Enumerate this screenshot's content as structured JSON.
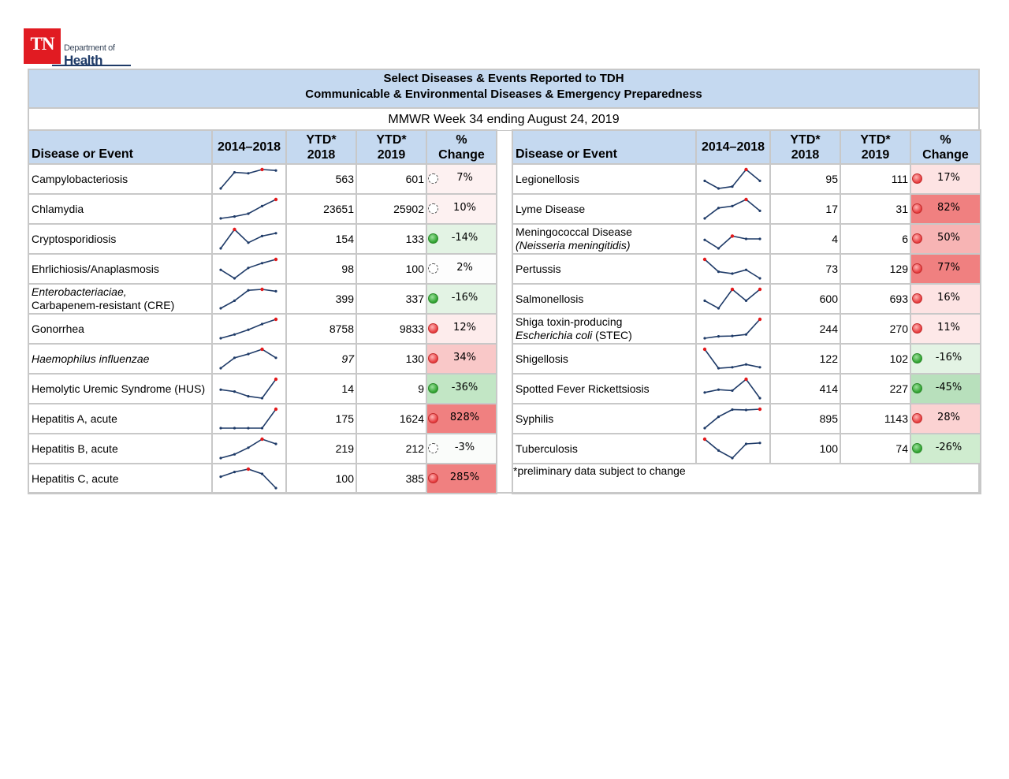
{
  "logo": {
    "tn": "TN",
    "dept": "Department of",
    "health": "Health"
  },
  "header": {
    "title_line1": "Select Diseases & Events Reported to TDH",
    "title_line2": "Communicable & Environmental Diseases & Emergency Preparedness",
    "week": "MMWR Week 34 ending August 24, 2019"
  },
  "columns": {
    "disease": "Disease or Event",
    "years": "2014–2018",
    "ytd2018_a": "YTD*",
    "ytd2018_b": "2018",
    "ytd2019_a": "YTD*",
    "ytd2019_b": "2019",
    "pct_a": "%",
    "pct_b": "Change"
  },
  "colors": {
    "header_bg": "#c5d9f0",
    "spark_line": "#1f3b68",
    "spark_max": "#e31a1c",
    "green_strong": "#b8e0bc",
    "green_light": "#e3f3e4",
    "red_light": "#fde8e8",
    "red_mid": "#f9c2c2",
    "red_strong": "#f08080",
    "neutral": "#fdfdfd"
  },
  "footnote": "*preliminary data subject to change",
  "left_rows": [
    {
      "name": "Campylobacteriosis",
      "y2018": "563",
      "y2019": "601",
      "pct": "7%",
      "status": "empty",
      "bg": "#fdf1f1",
      "spark": [
        0,
        0.85,
        0.8,
        1.0,
        0.95
      ]
    },
    {
      "name": "Chlamydia",
      "y2018": "23651",
      "y2019": "25902",
      "pct": "10%",
      "status": "empty",
      "bg": "#fdf1f1",
      "spark": [
        0,
        0.1,
        0.25,
        0.65,
        1.0
      ]
    },
    {
      "name": "Cryptosporidiosis",
      "y2018": "154",
      "y2019": "133",
      "pct": "-14%",
      "status": "green",
      "bg": "#e3f3e4",
      "spark": [
        0,
        1.0,
        0.3,
        0.65,
        0.8
      ]
    },
    {
      "name": "Ehrlichiosis/Anaplasmosis",
      "y2018": "98",
      "y2019": "100",
      "pct": "2%",
      "status": "empty",
      "bg": "#fdfdfd",
      "spark": [
        0.45,
        0,
        0.55,
        0.8,
        1.0
      ]
    },
    {
      "name_i": "Enterobacteriaciae,",
      "name2": "Carbapenem-resistant (CRE)",
      "y2018": "399",
      "y2019": "337",
      "pct": "-16%",
      "status": "green",
      "bg": "#e3f3e4",
      "spark": [
        0,
        0.4,
        0.95,
        1.0,
        0.9
      ]
    },
    {
      "name": "Gonorrhea",
      "y2018": "8758",
      "y2019": "9833",
      "pct": "12%",
      "status": "red",
      "bg": "#fdecec",
      "spark": [
        0,
        0.2,
        0.45,
        0.75,
        1.0
      ]
    },
    {
      "name_i": "Haemophilus influenzae",
      "y2018": "97",
      "y2019": "130",
      "pct": "34%",
      "status": "red",
      "bg": "#f9c8c8",
      "spark": [
        0,
        0.55,
        0.75,
        1.0,
        0.55
      ],
      "y2018_italic": true
    },
    {
      "name": "Hemolytic Uremic Syndrome (HUS)",
      "y2018": "14",
      "y2019": "9",
      "pct": "-36%",
      "status": "green",
      "bg": "#c2e6c5",
      "spark": [
        0.45,
        0.35,
        0.1,
        0,
        1.0
      ]
    },
    {
      "name": "Hepatitis A, acute",
      "y2018": "175",
      "y2019": "1624",
      "pct": "828%",
      "status": "red",
      "bg": "#f08080",
      "spark": [
        0,
        0,
        0,
        0,
        1.0
      ]
    },
    {
      "name": "Hepatitis B, acute",
      "y2018": "219",
      "y2019": "212",
      "pct": "-3%",
      "status": "empty",
      "bg": "#fafcfa",
      "spark": [
        0,
        0.2,
        0.55,
        1.0,
        0.75
      ]
    },
    {
      "name": "Hepatitis C, acute",
      "y2018": "100",
      "y2019": "385",
      "pct": "285%",
      "status": "red",
      "bg": "#f08080",
      "spark": [
        0.6,
        0.85,
        1.0,
        0.75,
        0
      ]
    }
  ],
  "right_rows": [
    {
      "name": "Legionellosis",
      "y2018": "95",
      "y2019": "111",
      "pct": "17%",
      "status": "red",
      "bg": "#fde3e3",
      "spark": [
        0.4,
        0,
        0.1,
        1.0,
        0.4
      ]
    },
    {
      "name": "Lyme Disease",
      "y2018": "17",
      "y2019": "31",
      "pct": "82%",
      "status": "red",
      "bg": "#f08080",
      "spark": [
        0,
        0.55,
        0.65,
        1.0,
        0.4
      ]
    },
    {
      "name": "Meningococcal Disease",
      "name2_i": "(Neisseria meningitidis)",
      "y2018": "4",
      "y2019": "6",
      "pct": "50%",
      "status": "red",
      "bg": "#f7b4b4",
      "spark": [
        0.45,
        0,
        0.65,
        0.5,
        0.5
      ]
    },
    {
      "name": "Pertussis",
      "y2018": "73",
      "y2019": "129",
      "pct": "77%",
      "status": "red",
      "bg": "#f08080",
      "spark": [
        1.0,
        0.35,
        0.25,
        0.45,
        0
      ]
    },
    {
      "name": "Salmonellosis",
      "y2018": "600",
      "y2019": "693",
      "pct": "16%",
      "status": "red",
      "bg": "#fde3e3",
      "spark": [
        0.4,
        0,
        1.0,
        0.4,
        1.0
      ]
    },
    {
      "name": "Shiga toxin-producing",
      "name2_i": "Escherichia coli",
      "name2_tail": "(STEC)",
      "y2018": "244",
      "y2019": "270",
      "pct": "11%",
      "status": "red",
      "bg": "#fde8e8",
      "spark": [
        0,
        0.1,
        0.12,
        0.2,
        1.0
      ]
    },
    {
      "name": "Shigellosis",
      "y2018": "122",
      "y2019": "102",
      "pct": "-16%",
      "status": "green",
      "bg": "#e3f3e4",
      "spark": [
        1.0,
        0,
        0.05,
        0.2,
        0.05
      ]
    },
    {
      "name": "Spotted Fever Rickettsiosis",
      "y2018": "414",
      "y2019": "227",
      "pct": "-45%",
      "status": "green",
      "bg": "#b8e0bc",
      "spark": [
        0.3,
        0.45,
        0.4,
        1.0,
        0
      ]
    },
    {
      "name": "Syphilis",
      "y2018": "895",
      "y2019": "1143",
      "pct": "28%",
      "status": "red",
      "bg": "#fbd2d2",
      "spark": [
        0,
        0.6,
        0.98,
        0.96,
        1.0
      ]
    },
    {
      "name": "Tuberculosis",
      "y2018": "100",
      "y2019": "74",
      "pct": "-26%",
      "status": "green",
      "bg": "#cfeccf",
      "spark": [
        1.0,
        0.4,
        0,
        0.75,
        0.8
      ]
    }
  ]
}
